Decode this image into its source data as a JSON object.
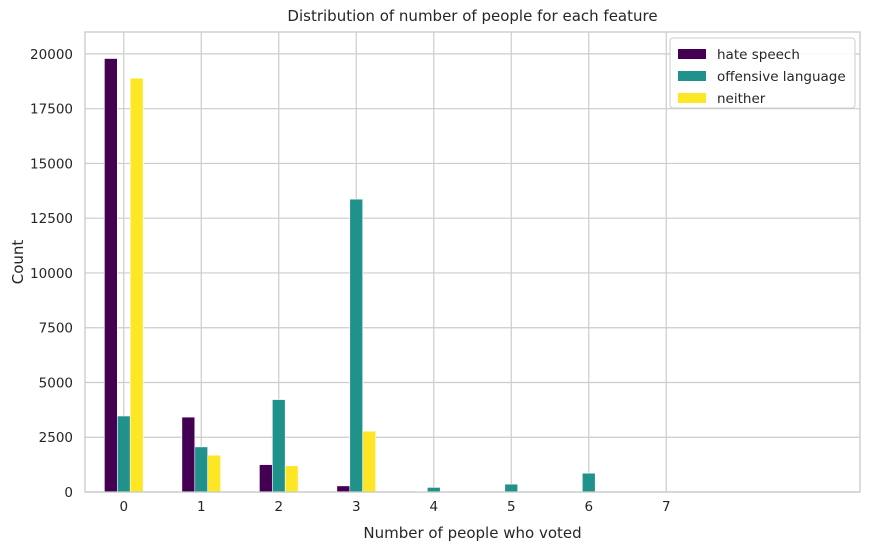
{
  "chart_data": {
    "type": "bar",
    "title": "Distribution of number of people for each feature",
    "xlabel": "Number of people who voted",
    "ylabel": "Count",
    "categories": [
      "0",
      "1",
      "2",
      "3",
      "4",
      "5",
      "6",
      "7"
    ],
    "xlim": [
      -0.5,
      9.5
    ],
    "ylim": [
      0,
      21000
    ],
    "yticks": [
      0,
      2500,
      5000,
      7500,
      10000,
      12500,
      15000,
      17500,
      20000
    ],
    "grid": true,
    "legend_position": "top-right",
    "series": [
      {
        "name": "hate speech",
        "color": "#440154",
        "values": [
          19790,
          3420,
          1250,
          280,
          30,
          0,
          0,
          0
        ]
      },
      {
        "name": "offensive language",
        "color": "#21918c",
        "values": [
          3470,
          2060,
          4220,
          13370,
          210,
          360,
          860,
          0
        ]
      },
      {
        "name": "neither",
        "color": "#fde725",
        "values": [
          18890,
          1680,
          1200,
          2780,
          0,
          0,
          0,
          0
        ]
      }
    ]
  }
}
